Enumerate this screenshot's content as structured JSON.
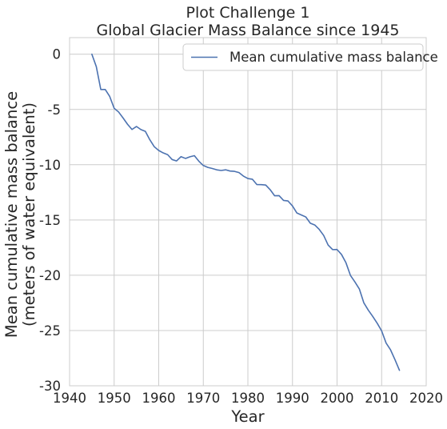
{
  "chart_data": {
    "type": "line",
    "title_line1": "Plot Challenge 1",
    "title_line2": "Global Glacier Mass Balance since 1945",
    "xlabel": "Year",
    "ylabel_line1": "Mean cumulative mass balance",
    "ylabel_line2": "(meters of water equivalent)",
    "xlim": [
      1940,
      2020
    ],
    "ylim": [
      -30,
      1.5
    ],
    "xticks": [
      1940,
      1950,
      1960,
      1970,
      1980,
      1990,
      2000,
      2010,
      2020
    ],
    "yticks": [
      0,
      -5,
      -10,
      -15,
      -20,
      -25,
      -30
    ],
    "grid": true,
    "legend_position": "top-right",
    "line_color": "#4c72b0",
    "series": [
      {
        "name": "Mean cumulative mass balance",
        "x": [
          1945,
          1946,
          1947,
          1948,
          1949,
          1950,
          1951,
          1952,
          1953,
          1954,
          1955,
          1956,
          1957,
          1958,
          1959,
          1960,
          1961,
          1962,
          1963,
          1964,
          1965,
          1966,
          1967,
          1968,
          1969,
          1970,
          1971,
          1972,
          1973,
          1974,
          1975,
          1976,
          1977,
          1978,
          1979,
          1980,
          1981,
          1982,
          1983,
          1984,
          1985,
          1986,
          1987,
          1988,
          1989,
          1990,
          1991,
          1992,
          1993,
          1994,
          1995,
          1996,
          1997,
          1998,
          1999,
          2000,
          2001,
          2002,
          2003,
          2004,
          2005,
          2006,
          2007,
          2008,
          2009,
          2010,
          2011,
          2012,
          2013,
          2014
        ],
        "y": [
          0,
          -1.13,
          -3.19,
          -3.19,
          -3.82,
          -4.89,
          -5.23,
          -5.77,
          -6.34,
          -6.81,
          -6.54,
          -6.82,
          -6.98,
          -7.74,
          -8.37,
          -8.71,
          -8.93,
          -9.09,
          -9.53,
          -9.66,
          -9.27,
          -9.43,
          -9.28,
          -9.18,
          -9.68,
          -10.07,
          -10.24,
          -10.34,
          -10.46,
          -10.52,
          -10.46,
          -10.57,
          -10.6,
          -10.71,
          -11.03,
          -11.25,
          -11.31,
          -11.79,
          -11.8,
          -11.84,
          -12.26,
          -12.81,
          -12.8,
          -13.23,
          -13.28,
          -13.73,
          -14.37,
          -14.55,
          -14.73,
          -15.29,
          -15.45,
          -15.85,
          -16.4,
          -17.27,
          -17.68,
          -17.67,
          -18.12,
          -18.87,
          -20.01,
          -20.6,
          -21.24,
          -22.49,
          -23.15,
          -23.72,
          -24.34,
          -25.03,
          -26.13,
          -26.75,
          -27.64,
          -28.6
        ]
      }
    ]
  }
}
